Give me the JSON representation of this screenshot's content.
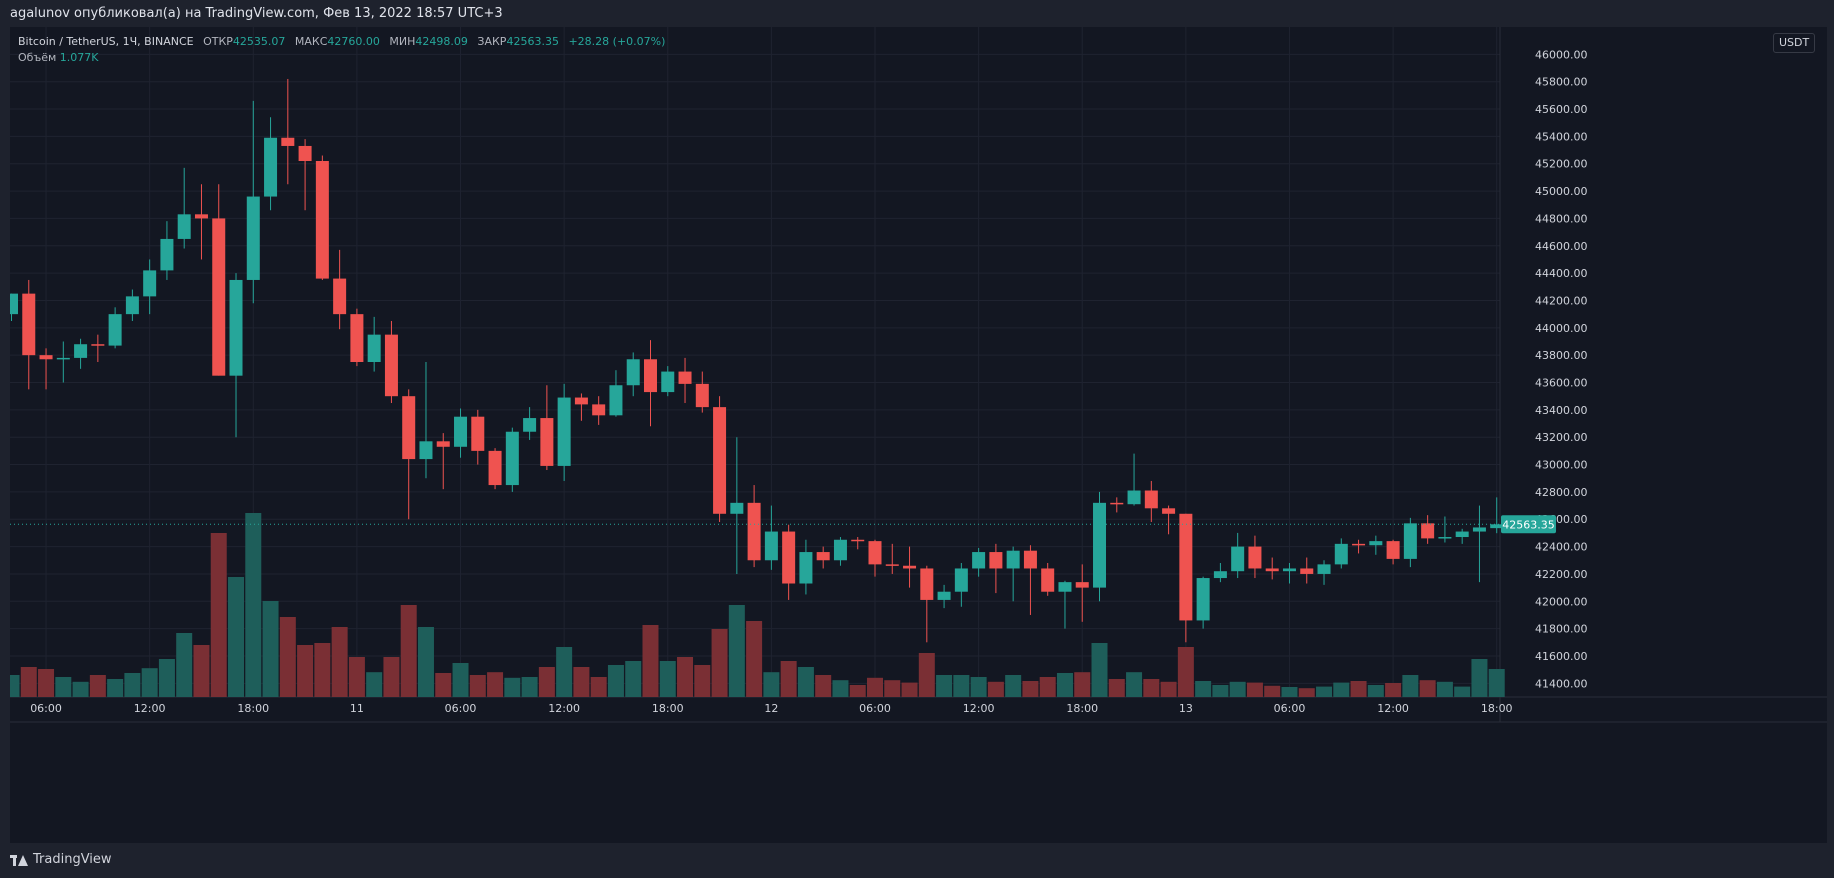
{
  "header": {
    "publish_line": "agalunov опубликовал(а) на TradingView.com, Фев 13, 2022 18:57 UTC+3"
  },
  "legend": {
    "symbol": "Bitcoin / TetherUS, 1Ч, BINANCE",
    "open_label": "ОТКР",
    "open_value": "42535.07",
    "high_label": "МАКС",
    "high_value": "42760.00",
    "low_label": "МИН",
    "low_value": "42498.09",
    "close_label": "ЗАКР",
    "close_value": "42563.35",
    "change": "+28.28 (+0.07%)",
    "volume_label": "Объём",
    "volume_value": "1.077K"
  },
  "currency_badge": "USDT",
  "footer": {
    "brand": "TradingView"
  },
  "colors": {
    "up": "#26a69a",
    "down": "#ef5350",
    "up_volume": "#1e5e5a",
    "down_volume": "#7a2f34",
    "background": "#131722",
    "grid": "#1f2330"
  },
  "chart_data": {
    "type": "candlestick",
    "ylim": [
      41300,
      46200
    ],
    "y_ticks": [
      41400,
      41600,
      41800,
      42000,
      42200,
      42400,
      42600,
      42800,
      43000,
      43200,
      43400,
      43600,
      43800,
      44000,
      44200,
      44400,
      44600,
      44800,
      45000,
      45200,
      45400,
      45600,
      45800,
      46000
    ],
    "y_tick_labels": [
      "41400.00",
      "41600.00",
      "41800.00",
      "42000.00",
      "42200.00",
      "42400.00",
      "42600.00",
      "42800.00",
      "43000.00",
      "43200.00",
      "43400.00",
      "43600.00",
      "43800.00",
      "44000.00",
      "44200.00",
      "44400.00",
      "44600.00",
      "44800.00",
      "45000.00",
      "45200.00",
      "45400.00",
      "45600.00",
      "45800.00",
      "46000.00"
    ],
    "x_ticks": [
      {
        "candle": 2,
        "label": "06:00"
      },
      {
        "candle": 8,
        "label": "12:00"
      },
      {
        "candle": 14,
        "label": "18:00"
      },
      {
        "candle": 20,
        "label": "11"
      },
      {
        "candle": 26,
        "label": "06:00"
      },
      {
        "candle": 32,
        "label": "12:00"
      },
      {
        "candle": 38,
        "label": "18:00"
      },
      {
        "candle": 44,
        "label": "12"
      },
      {
        "candle": 50,
        "label": "06:00"
      },
      {
        "candle": 56,
        "label": "12:00"
      },
      {
        "candle": 62,
        "label": "18:00"
      },
      {
        "candle": 68,
        "label": "13"
      },
      {
        "candle": 74,
        "label": "06:00"
      },
      {
        "candle": 80,
        "label": "12:00"
      },
      {
        "candle": 86,
        "label": "18:00"
      }
    ],
    "last_price": 42563.35,
    "last_price_label": "42563.35",
    "candles": [
      {
        "o": 44100,
        "h": 44250,
        "l": 44050,
        "c": 44250,
        "v": 0.55
      },
      {
        "o": 44250,
        "h": 44350,
        "l": 43550,
        "c": 43800,
        "v": 0.75
      },
      {
        "o": 43800,
        "h": 43850,
        "l": 43550,
        "c": 43770,
        "v": 0.7
      },
      {
        "o": 43770,
        "h": 43900,
        "l": 43600,
        "c": 43780,
        "v": 0.5
      },
      {
        "o": 43780,
        "h": 43920,
        "l": 43700,
        "c": 43880,
        "v": 0.38
      },
      {
        "o": 43880,
        "h": 43950,
        "l": 43750,
        "c": 43870,
        "v": 0.55
      },
      {
        "o": 43870,
        "h": 44150,
        "l": 43850,
        "c": 44100,
        "v": 0.45
      },
      {
        "o": 44100,
        "h": 44280,
        "l": 44050,
        "c": 44230,
        "v": 0.6
      },
      {
        "o": 44230,
        "h": 44500,
        "l": 44100,
        "c": 44420,
        "v": 0.72
      },
      {
        "o": 44420,
        "h": 44780,
        "l": 44350,
        "c": 44650,
        "v": 0.95
      },
      {
        "o": 44650,
        "h": 45170,
        "l": 44580,
        "c": 44830,
        "v": 1.6
      },
      {
        "o": 44830,
        "h": 45050,
        "l": 44500,
        "c": 44800,
        "v": 1.3
      },
      {
        "o": 44800,
        "h": 45050,
        "l": 43650,
        "c": 43650,
        "v": 4.1
      },
      {
        "o": 43650,
        "h": 44400,
        "l": 43200,
        "c": 44350,
        "v": 3.0
      },
      {
        "o": 44350,
        "h": 45660,
        "l": 44180,
        "c": 44960,
        "v": 4.6
      },
      {
        "o": 44960,
        "h": 45540,
        "l": 44860,
        "c": 45390,
        "v": 2.4
      },
      {
        "o": 45390,
        "h": 45820,
        "l": 45050,
        "c": 45330,
        "v": 2.0
      },
      {
        "o": 45330,
        "h": 45380,
        "l": 44860,
        "c": 45220,
        "v": 1.3
      },
      {
        "o": 45220,
        "h": 45260,
        "l": 44350,
        "c": 44360,
        "v": 1.35
      },
      {
        "o": 44360,
        "h": 44570,
        "l": 43990,
        "c": 44100,
        "v": 1.75
      },
      {
        "o": 44100,
        "h": 44140,
        "l": 43720,
        "c": 43750,
        "v": 1.0
      },
      {
        "o": 43750,
        "h": 44080,
        "l": 43680,
        "c": 43950,
        "v": 0.62
      },
      {
        "o": 43950,
        "h": 44050,
        "l": 43450,
        "c": 43500,
        "v": 1.0
      },
      {
        "o": 43500,
        "h": 43550,
        "l": 42600,
        "c": 43040,
        "v": 2.3
      },
      {
        "o": 43040,
        "h": 43750,
        "l": 42900,
        "c": 43170,
        "v": 1.75
      },
      {
        "o": 43170,
        "h": 43230,
        "l": 42820,
        "c": 43130,
        "v": 0.6
      },
      {
        "o": 43130,
        "h": 43410,
        "l": 43050,
        "c": 43350,
        "v": 0.85
      },
      {
        "o": 43350,
        "h": 43400,
        "l": 43000,
        "c": 43100,
        "v": 0.55
      },
      {
        "o": 43100,
        "h": 43120,
        "l": 42820,
        "c": 42850,
        "v": 0.62
      },
      {
        "o": 42850,
        "h": 43270,
        "l": 42800,
        "c": 43240,
        "v": 0.48
      },
      {
        "o": 43240,
        "h": 43420,
        "l": 43180,
        "c": 43340,
        "v": 0.5
      },
      {
        "o": 43340,
        "h": 43580,
        "l": 42960,
        "c": 42990,
        "v": 0.75
      },
      {
        "o": 42990,
        "h": 43590,
        "l": 42880,
        "c": 43490,
        "v": 1.25
      },
      {
        "o": 43490,
        "h": 43520,
        "l": 43320,
        "c": 43440,
        "v": 0.75
      },
      {
        "o": 43440,
        "h": 43500,
        "l": 43290,
        "c": 43360,
        "v": 0.5
      },
      {
        "o": 43360,
        "h": 43690,
        "l": 43350,
        "c": 43580,
        "v": 0.8
      },
      {
        "o": 43580,
        "h": 43820,
        "l": 43500,
        "c": 43770,
        "v": 0.9
      },
      {
        "o": 43770,
        "h": 43910,
        "l": 43280,
        "c": 43530,
        "v": 1.8
      },
      {
        "o": 43530,
        "h": 43720,
        "l": 43500,
        "c": 43680,
        "v": 0.9
      },
      {
        "o": 43680,
        "h": 43780,
        "l": 43450,
        "c": 43590,
        "v": 1.0
      },
      {
        "o": 43590,
        "h": 43680,
        "l": 43380,
        "c": 43420,
        "v": 0.8
      },
      {
        "o": 43420,
        "h": 43500,
        "l": 42580,
        "c": 42640,
        "v": 1.7
      },
      {
        "o": 42640,
        "h": 43200,
        "l": 42200,
        "c": 42720,
        "v": 2.3
      },
      {
        "o": 42720,
        "h": 42850,
        "l": 42250,
        "c": 42300,
        "v": 1.9
      },
      {
        "o": 42300,
        "h": 42700,
        "l": 42230,
        "c": 42510,
        "v": 0.62
      },
      {
        "o": 42510,
        "h": 42560,
        "l": 42010,
        "c": 42130,
        "v": 0.9
      },
      {
        "o": 42130,
        "h": 42450,
        "l": 42050,
        "c": 42360,
        "v": 0.75
      },
      {
        "o": 42360,
        "h": 42400,
        "l": 42240,
        "c": 42300,
        "v": 0.55
      },
      {
        "o": 42300,
        "h": 42470,
        "l": 42260,
        "c": 42450,
        "v": 0.42
      },
      {
        "o": 42450,
        "h": 42470,
        "l": 42380,
        "c": 42440,
        "v": 0.3
      },
      {
        "o": 42440,
        "h": 42450,
        "l": 42180,
        "c": 42270,
        "v": 0.48
      },
      {
        "o": 42270,
        "h": 42420,
        "l": 42200,
        "c": 42260,
        "v": 0.42
      },
      {
        "o": 42260,
        "h": 42400,
        "l": 42100,
        "c": 42240,
        "v": 0.36
      },
      {
        "o": 42240,
        "h": 42260,
        "l": 41700,
        "c": 42010,
        "v": 1.1
      },
      {
        "o": 42010,
        "h": 42120,
        "l": 41950,
        "c": 42070,
        "v": 0.55
      },
      {
        "o": 42070,
        "h": 42280,
        "l": 41960,
        "c": 42240,
        "v": 0.55
      },
      {
        "o": 42240,
        "h": 42390,
        "l": 42180,
        "c": 42360,
        "v": 0.5
      },
      {
        "o": 42360,
        "h": 42420,
        "l": 42060,
        "c": 42240,
        "v": 0.38
      },
      {
        "o": 42240,
        "h": 42400,
        "l": 42000,
        "c": 42370,
        "v": 0.55
      },
      {
        "o": 42370,
        "h": 42410,
        "l": 41900,
        "c": 42240,
        "v": 0.4
      },
      {
        "o": 42240,
        "h": 42280,
        "l": 42040,
        "c": 42070,
        "v": 0.5
      },
      {
        "o": 42070,
        "h": 42150,
        "l": 41800,
        "c": 42140,
        "v": 0.6
      },
      {
        "o": 42140,
        "h": 42270,
        "l": 41850,
        "c": 42100,
        "v": 0.62
      },
      {
        "o": 42100,
        "h": 42800,
        "l": 42000,
        "c": 42720,
        "v": 1.35
      },
      {
        "o": 42720,
        "h": 42760,
        "l": 42650,
        "c": 42710,
        "v": 0.45
      },
      {
        "o": 42710,
        "h": 43080,
        "l": 42700,
        "c": 42810,
        "v": 0.62
      },
      {
        "o": 42810,
        "h": 42880,
        "l": 42580,
        "c": 42680,
        "v": 0.45
      },
      {
        "o": 42680,
        "h": 42700,
        "l": 42490,
        "c": 42640,
        "v": 0.38
      },
      {
        "o": 42640,
        "h": 42640,
        "l": 41700,
        "c": 41860,
        "v": 1.25
      },
      {
        "o": 41860,
        "h": 42180,
        "l": 41800,
        "c": 42170,
        "v": 0.4
      },
      {
        "o": 42170,
        "h": 42280,
        "l": 42140,
        "c": 42220,
        "v": 0.3
      },
      {
        "o": 42220,
        "h": 42500,
        "l": 42170,
        "c": 42400,
        "v": 0.38
      },
      {
        "o": 42400,
        "h": 42480,
        "l": 42170,
        "c": 42240,
        "v": 0.36
      },
      {
        "o": 42240,
        "h": 42320,
        "l": 42160,
        "c": 42220,
        "v": 0.28
      },
      {
        "o": 42220,
        "h": 42280,
        "l": 42130,
        "c": 42240,
        "v": 0.25
      },
      {
        "o": 42240,
        "h": 42320,
        "l": 42130,
        "c": 42200,
        "v": 0.22
      },
      {
        "o": 42200,
        "h": 42300,
        "l": 42120,
        "c": 42270,
        "v": 0.26
      },
      {
        "o": 42270,
        "h": 42460,
        "l": 42240,
        "c": 42420,
        "v": 0.36
      },
      {
        "o": 42420,
        "h": 42450,
        "l": 42350,
        "c": 42410,
        "v": 0.4
      },
      {
        "o": 42410,
        "h": 42480,
        "l": 42340,
        "c": 42440,
        "v": 0.3
      },
      {
        "o": 42440,
        "h": 42450,
        "l": 42270,
        "c": 42310,
        "v": 0.35
      },
      {
        "o": 42310,
        "h": 42610,
        "l": 42250,
        "c": 42570,
        "v": 0.55
      },
      {
        "o": 42570,
        "h": 42630,
        "l": 42420,
        "c": 42460,
        "v": 0.42
      },
      {
        "o": 42460,
        "h": 42620,
        "l": 42430,
        "c": 42470,
        "v": 0.38
      },
      {
        "o": 42470,
        "h": 42530,
        "l": 42420,
        "c": 42510,
        "v": 0.26
      },
      {
        "o": 42510,
        "h": 42700,
        "l": 42140,
        "c": 42540,
        "v": 0.95
      },
      {
        "o": 42535,
        "h": 42760,
        "l": 42498,
        "c": 42563,
        "v": 0.7
      }
    ]
  }
}
